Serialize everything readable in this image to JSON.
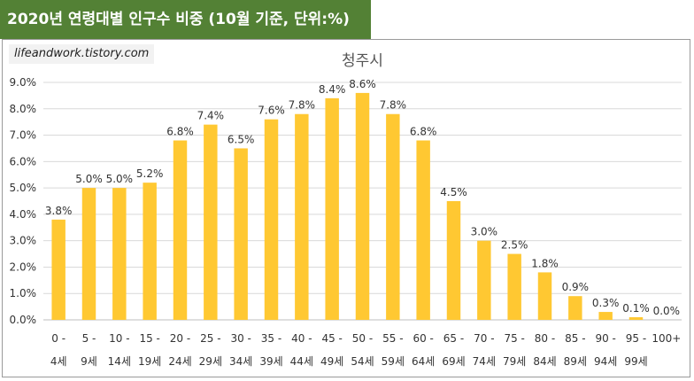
{
  "banner": {
    "title": "2020년 연령대별 인구수 비중 (10월 기준, 단위:%)"
  },
  "watermark": {
    "text": "lifeandwork.tistory.com"
  },
  "colors": {
    "bar": "#FFC832",
    "banner": "#538135",
    "grid": "#d9d9d9"
  },
  "chart_data": {
    "type": "bar",
    "title": "청주시",
    "xlabel": "",
    "ylabel": "",
    "ylim": [
      0,
      9
    ],
    "y_ticks": [
      "0.0%",
      "1.0%",
      "2.0%",
      "3.0%",
      "4.0%",
      "5.0%",
      "6.0%",
      "7.0%",
      "8.0%",
      "9.0%"
    ],
    "grid": true,
    "legend": "none",
    "categories": [
      [
        "0 -",
        "4세"
      ],
      [
        "5 -",
        "9세"
      ],
      [
        "10 -",
        "14세"
      ],
      [
        "15 -",
        "19세"
      ],
      [
        "20 -",
        "24세"
      ],
      [
        "25 -",
        "29세"
      ],
      [
        "30 -",
        "34세"
      ],
      [
        "35 -",
        "39세"
      ],
      [
        "40 -",
        "44세"
      ],
      [
        "45 -",
        "49세"
      ],
      [
        "50 -",
        "54세"
      ],
      [
        "55 -",
        "59세"
      ],
      [
        "60 -",
        "64세"
      ],
      [
        "65 -",
        "69세"
      ],
      [
        "70 -",
        "74세"
      ],
      [
        "75 -",
        "79세"
      ],
      [
        "80 -",
        "84세"
      ],
      [
        "85 -",
        "89세"
      ],
      [
        "90 -",
        "94세"
      ],
      [
        "95 -",
        "99세"
      ],
      [
        "100+",
        ""
      ]
    ],
    "values": [
      3.8,
      5.0,
      5.0,
      5.2,
      6.8,
      7.4,
      6.5,
      7.6,
      7.8,
      8.4,
      8.6,
      7.8,
      6.8,
      4.5,
      3.0,
      2.5,
      1.8,
      0.9,
      0.3,
      0.1,
      0.0
    ],
    "data_labels": [
      "3.8%",
      "5.0%",
      "5.0%",
      "5.2%",
      "6.8%",
      "7.4%",
      "6.5%",
      "7.6%",
      "7.8%",
      "8.4%",
      "8.6%",
      "7.8%",
      "6.8%",
      "4.5%",
      "3.0%",
      "2.5%",
      "1.8%",
      "0.9%",
      "0.3%",
      "0.1%",
      "0.0%"
    ]
  }
}
